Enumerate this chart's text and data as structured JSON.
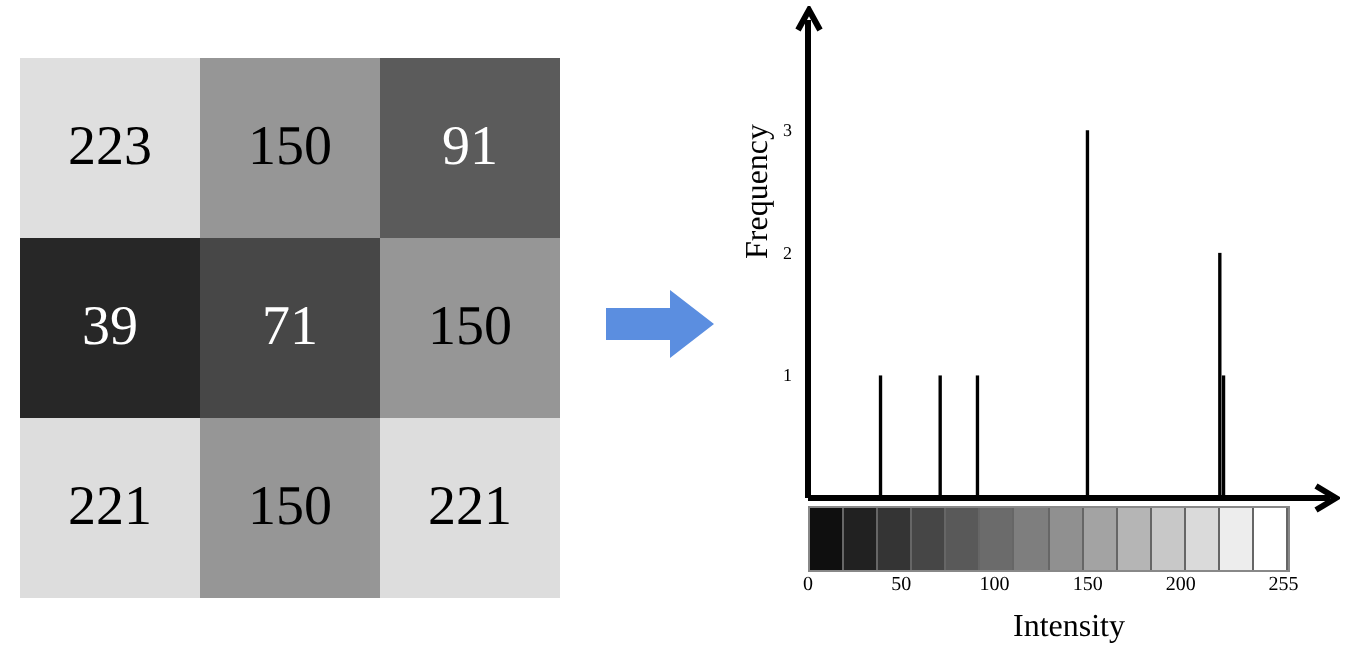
{
  "chart_data": [
    {
      "type": "heatmap",
      "categories": [
        null,
        null,
        null
      ],
      "y_categories": [
        null,
        null,
        null
      ],
      "cells": [
        [
          223,
          150,
          91
        ],
        [
          39,
          71,
          150
        ],
        [
          221,
          150,
          221
        ]
      ],
      "data_labels": true
    },
    {
      "type": "bar",
      "x": [
        39,
        71,
        91,
        150,
        221,
        223
      ],
      "values": [
        1,
        1,
        1,
        3,
        2,
        1
      ],
      "color": "#000000",
      "xlabel": "Intensity",
      "ylabel": "Frequency",
      "xlim": [
        0,
        280
      ],
      "xticks": [
        0,
        50,
        100,
        150,
        200,
        255
      ],
      "ylim": [
        0,
        3.9
      ],
      "yticks": [
        1,
        2,
        3
      ]
    }
  ]
}
